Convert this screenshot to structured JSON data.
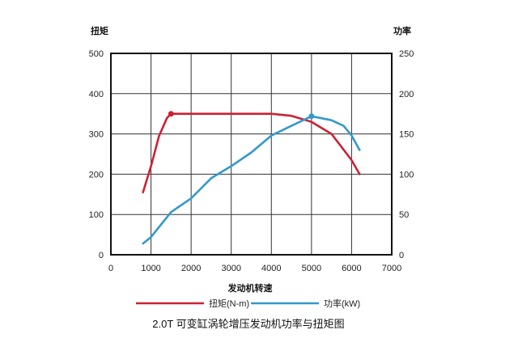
{
  "chart_data": {
    "type": "line",
    "title": "2.0T 可变缸涡轮增压发动机功率与扭矩图",
    "xlabel": "发动机转速",
    "ylabel_left": "扭矩",
    "ylabel_right": "功率",
    "xlim": [
      0,
      7000
    ],
    "ylim_left": [
      0,
      500
    ],
    "ylim_right": [
      0,
      250
    ],
    "x_ticks": [
      0,
      1000,
      2000,
      3000,
      4000,
      5000,
      6000,
      7000
    ],
    "y_left_ticks": [
      0,
      100,
      200,
      300,
      400,
      500
    ],
    "y_right_ticks": [
      0,
      50,
      100,
      150,
      200,
      250
    ],
    "grid": true,
    "legend_position": "bottom",
    "series": [
      {
        "name": "扭矩(N-m)",
        "axis": "left",
        "color": "#cc2233",
        "x": [
          800,
          1000,
          1200,
          1400,
          1500,
          2000,
          3000,
          4000,
          4500,
          5000,
          5500,
          6000,
          6200
        ],
        "y": [
          155,
          220,
          295,
          340,
          350,
          350,
          350,
          350,
          345,
          330,
          300,
          235,
          200
        ],
        "marker_at": [
          1500,
          350
        ]
      },
      {
        "name": "功率(kW)",
        "axis": "right",
        "color": "#3399cc",
        "x": [
          800,
          1000,
          1500,
          2000,
          2500,
          3000,
          3500,
          4000,
          4500,
          5000,
          5500,
          5800,
          6000,
          6200
        ],
        "y": [
          14,
          22,
          53,
          70,
          95,
          110,
          127,
          148,
          160,
          172,
          167,
          160,
          148,
          130
        ],
        "marker_at": [
          5000,
          172
        ]
      }
    ]
  }
}
